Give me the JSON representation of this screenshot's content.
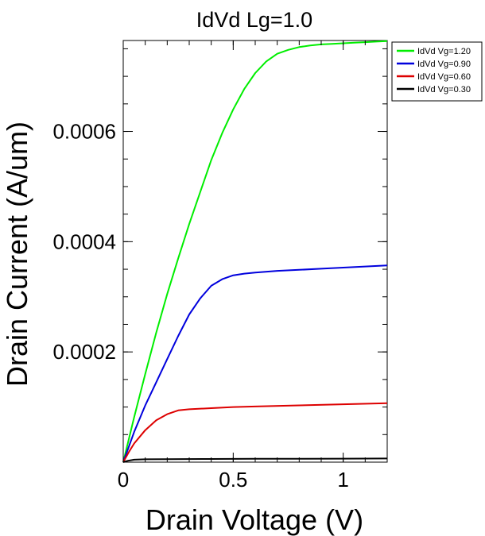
{
  "chart_data": {
    "type": "line",
    "title": "IdVd Lg=1.0",
    "xlabel": "Drain Voltage (V)",
    "ylabel": "Drain Current (A/um)",
    "xlim": [
      0,
      1.2
    ],
    "ylim": [
      0,
      0.000765
    ],
    "xticks": [
      0,
      0.5,
      1
    ],
    "xtick_labels": [
      "0",
      "0.5",
      "1"
    ],
    "yticks": [
      0.0002,
      0.0004,
      0.0006
    ],
    "ytick_labels": [
      "0.0002",
      "0.0004",
      "0.0006"
    ],
    "grid": false,
    "legend_position": "top-right outside plot",
    "series": [
      {
        "name": "IdVd Vg=1.20",
        "color": "#00ee00",
        "x": [
          0,
          0.05,
          0.1,
          0.15,
          0.2,
          0.25,
          0.3,
          0.35,
          0.4,
          0.45,
          0.5,
          0.55,
          0.6,
          0.65,
          0.7,
          0.75,
          0.8,
          0.85,
          0.9,
          0.95,
          1.0,
          1.05,
          1.1,
          1.15,
          1.2
        ],
        "y": [
          0,
          8.2e-05,
          0.00016,
          0.000235,
          0.000305,
          0.00037,
          0.000432,
          0.00049,
          0.000548,
          0.000597,
          0.00064,
          0.000677,
          0.000706,
          0.000727,
          0.000741,
          0.000748,
          0.000753,
          0.000756,
          0.000758,
          0.000759,
          0.00076,
          0.000761,
          0.000762,
          0.000763,
          0.000764
        ]
      },
      {
        "name": "IdVd Vg=0.90",
        "color": "#0000dd",
        "x": [
          0,
          0.05,
          0.1,
          0.15,
          0.2,
          0.25,
          0.3,
          0.35,
          0.4,
          0.45,
          0.5,
          0.55,
          0.6,
          0.7,
          0.8,
          0.9,
          1.0,
          1.1,
          1.2
        ],
        "y": [
          0,
          5.5e-05,
          0.000103,
          0.000145,
          0.000187,
          0.000229,
          0.000268,
          0.000297,
          0.00032,
          0.000332,
          0.000339,
          0.000342,
          0.000344,
          0.000347,
          0.000349,
          0.000351,
          0.000353,
          0.000355,
          0.000357
        ]
      },
      {
        "name": "IdVd Vg=0.60",
        "color": "#dd0000",
        "x": [
          0,
          0.025,
          0.05,
          0.1,
          0.15,
          0.2,
          0.25,
          0.3,
          0.4,
          0.5,
          0.6,
          0.8,
          1.0,
          1.2
        ],
        "y": [
          0,
          1.8e-05,
          3.4e-05,
          5.8e-05,
          7.6e-05,
          8.7e-05,
          9.4e-05,
          9.6e-05,
          9.8e-05,
          0.0001,
          0.000101,
          0.000103,
          0.000105,
          0.000107
        ]
      },
      {
        "name": "IdVd Vg=0.30",
        "color": "#000000",
        "x": [
          0,
          0.02,
          0.05,
          0.1,
          0.2,
          0.4,
          0.6,
          0.8,
          1.0,
          1.2
        ],
        "y": [
          0,
          2.5e-06,
          4.5e-06,
          5.2e-06,
          5.5e-06,
          5.8e-06,
          6e-06,
          6.2e-06,
          6.4e-06,
          6.6e-06
        ]
      }
    ]
  }
}
